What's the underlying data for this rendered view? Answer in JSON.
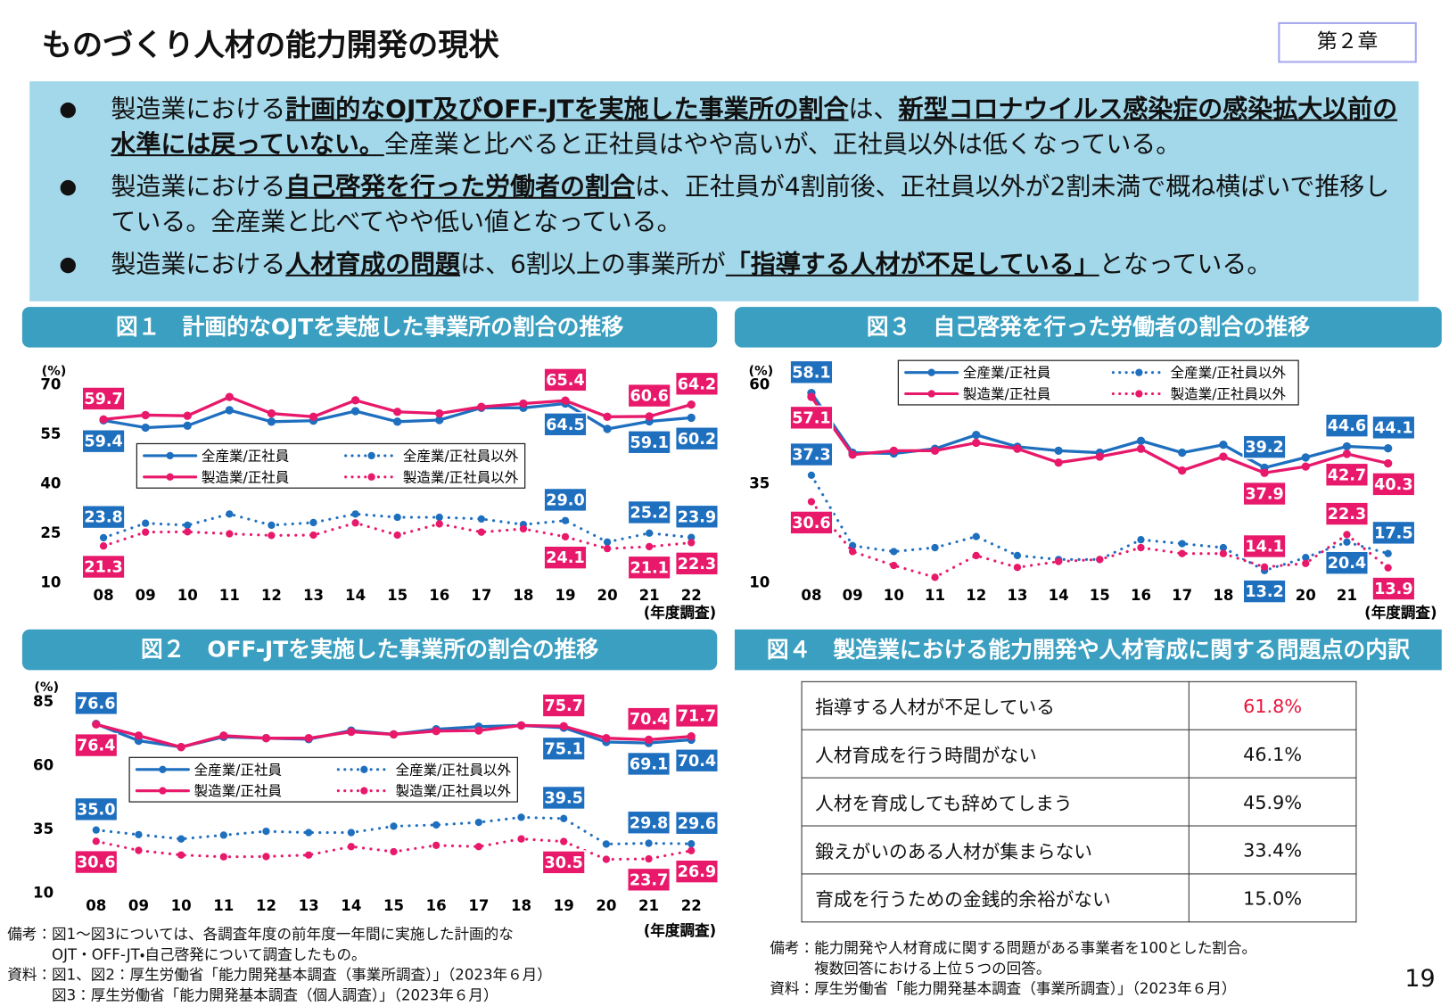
{
  "header": {
    "title": "ものづくり人材の能力開発の現状",
    "chapter": "第２章"
  },
  "bullets": [
    [
      {
        "text": "製造業における"
      },
      {
        "text": "計画的なOJT及びOFF-JTを実施した事業所の割合",
        "strong": true
      },
      {
        "text": "は、"
      },
      {
        "text": "新型コロナウイルス感染症の感染拡大以前の水準には戻っていない。",
        "strong": true
      },
      {
        "text": "全産業と比べると正社員はやや高いが、正社員以外は低くなっている。"
      }
    ],
    [
      {
        "text": "製造業における"
      },
      {
        "text": "自己啓発を行った労働者の割合",
        "strong": true
      },
      {
        "text": "は、正社員が4割前後、正社員以外が2割未満で概ね横ばいで推移している。全産業と比べてやや低い値となっている。"
      }
    ],
    [
      {
        "text": "製造業における"
      },
      {
        "text": "人材育成の問題",
        "strong": true
      },
      {
        "text": "は、6割以上の事業所が"
      },
      {
        "text": "「指導する人材が不足している」",
        "strong": true
      },
      {
        "text": "となっている。"
      }
    ]
  ],
  "chart_data": [
    {
      "type": "line",
      "title": "図１　計画的なOJTを実施した事業所の割合の推移",
      "y_label": "(%)",
      "x_label": "(年度調査)",
      "categories": [
        "08",
        "09",
        "10",
        "11",
        "12",
        "13",
        "14",
        "15",
        "16",
        "17",
        "18",
        "19",
        "20",
        "21",
        "22"
      ],
      "ylim": [
        10,
        70
      ],
      "yticks": [
        10,
        25,
        40,
        55,
        70
      ],
      "legend": "center",
      "series": [
        {
          "name": "全産業/正社員",
          "color": "#1f6fbf",
          "style": "solid",
          "values": [
            59.4,
            57.2,
            57.8,
            62.5,
            59,
            59.3,
            62.2,
            59,
            59.5,
            63.2,
            63.2,
            64.5,
            56.8,
            59.1,
            60.2
          ],
          "value_labels": [
            "59.4",
            null,
            null,
            null,
            null,
            null,
            null,
            null,
            null,
            null,
            null,
            "64.5",
            null,
            "59.1",
            "60.2"
          ]
        },
        {
          "name": "製造業/正社員",
          "color": "#e8186a",
          "style": "solid",
          "values": [
            59.7,
            61,
            60.8,
            66.5,
            61.5,
            60.5,
            65.5,
            62,
            61.5,
            63.5,
            64.5,
            65.4,
            60.5,
            60.6,
            64.2
          ],
          "value_labels": [
            "59.7",
            null,
            null,
            null,
            null,
            null,
            null,
            null,
            null,
            null,
            null,
            "65.4",
            null,
            "60.6",
            "64.2"
          ]
        },
        {
          "name": "全産業/正社員以外",
          "color": "#1f6fbf",
          "style": "dotted",
          "values": [
            23.8,
            28.2,
            27.6,
            31,
            27.6,
            28.4,
            31,
            30,
            30,
            29.5,
            27.8,
            29,
            22.5,
            25.2,
            23.9
          ],
          "value_labels": [
            "23.8",
            null,
            null,
            null,
            null,
            null,
            null,
            null,
            null,
            null,
            null,
            "29.0",
            null,
            "25.2",
            "23.9"
          ]
        },
        {
          "name": "製造業/正社員以外",
          "color": "#e8186a",
          "style": "dotted",
          "values": [
            21.3,
            25.5,
            25.6,
            25,
            24.5,
            24.6,
            28.3,
            24.6,
            28,
            25.5,
            26.5,
            24.1,
            20.5,
            21.1,
            22.3
          ],
          "value_labels": [
            "21.3",
            null,
            null,
            null,
            null,
            null,
            null,
            null,
            null,
            null,
            null,
            "24.1",
            null,
            "21.1",
            "22.3"
          ]
        }
      ]
    },
    {
      "type": "line",
      "title": "図２　OFF-JTを実施した事業所の割合の推移",
      "y_label": "(%)",
      "x_label": "(年度調査)",
      "categories": [
        "08",
        "09",
        "10",
        "11",
        "12",
        "13",
        "14",
        "15",
        "16",
        "17",
        "18",
        "19",
        "20",
        "21",
        "22"
      ],
      "ylim": [
        10,
        85
      ],
      "yticks": [
        10,
        35,
        60,
        85
      ],
      "legend": "center",
      "series": [
        {
          "name": "全産業/正社員",
          "color": "#1f6fbf",
          "style": "solid",
          "values": [
            76.6,
            70,
            67.5,
            71.5,
            71,
            70.6,
            74,
            72.5,
            74.5,
            75.5,
            76,
            75.1,
            69.5,
            69.1,
            70.4
          ],
          "value_labels": [
            "76.6",
            null,
            null,
            null,
            null,
            null,
            null,
            null,
            null,
            null,
            null,
            "75.1",
            null,
            "69.1",
            "70.4"
          ]
        },
        {
          "name": "製造業/正社員",
          "color": "#e8186a",
          "style": "solid",
          "values": [
            76.4,
            72,
            67.5,
            72,
            71,
            71,
            73.5,
            72.5,
            73.8,
            74,
            76,
            75.7,
            71,
            70.4,
            71.7
          ],
          "value_labels": [
            "76.4",
            null,
            null,
            null,
            null,
            null,
            null,
            null,
            null,
            null,
            null,
            "75.7",
            null,
            "70.4",
            "71.7"
          ]
        },
        {
          "name": "全産業/正社員以外",
          "color": "#1f6fbf",
          "style": "dotted",
          "values": [
            35,
            33.2,
            31.5,
            33,
            34.5,
            34,
            34,
            36.5,
            37,
            38,
            40,
            39.5,
            29.5,
            29.8,
            29.6
          ],
          "value_labels": [
            "35.0",
            null,
            null,
            null,
            null,
            null,
            null,
            null,
            null,
            null,
            null,
            "39.5",
            null,
            "29.8",
            "29.6"
          ]
        },
        {
          "name": "製造業/正社員以外",
          "color": "#e8186a",
          "style": "dotted",
          "values": [
            30.6,
            27,
            25.2,
            24.5,
            24.6,
            25.2,
            28.5,
            26.5,
            29,
            28.5,
            31.5,
            30.5,
            23.5,
            23.7,
            26.9
          ],
          "value_labels": [
            "30.6",
            null,
            null,
            null,
            null,
            null,
            null,
            null,
            null,
            null,
            null,
            "30.5",
            null,
            "23.7",
            "26.9"
          ]
        }
      ]
    },
    {
      "type": "line",
      "title": "図３　自己啓発を行った労働者の割合の推移",
      "y_label": "(%)",
      "x_label": "(年度調査)",
      "categories": [
        "08",
        "09",
        "10",
        "11",
        "12",
        "13",
        "14",
        "15",
        "16",
        "17",
        "18",
        "19",
        "20",
        "21",
        "22"
      ],
      "ylim": [
        10,
        60
      ],
      "yticks": [
        10,
        35,
        60
      ],
      "legend": "top",
      "series": [
        {
          "name": "全産業/正社員",
          "color": "#1f6fbf",
          "style": "solid",
          "values": [
            58.1,
            43,
            42.8,
            44,
            47.5,
            44.5,
            43.5,
            43,
            46,
            43,
            45,
            39.2,
            41.8,
            44.6,
            44.1
          ],
          "value_labels": [
            "58.1",
            null,
            null,
            null,
            null,
            null,
            null,
            null,
            null,
            null,
            null,
            "39.2",
            null,
            "44.6",
            "44.1"
          ]
        },
        {
          "name": "製造業/正社員",
          "color": "#e8186a",
          "style": "solid",
          "values": [
            57.1,
            42.5,
            43.5,
            43.5,
            45.5,
            44,
            40.5,
            42,
            44,
            38.5,
            42,
            37.9,
            39.5,
            42.7,
            40.3
          ],
          "value_labels": [
            "57.1",
            null,
            null,
            null,
            null,
            null,
            null,
            null,
            null,
            null,
            null,
            "37.9",
            null,
            "42.7",
            "40.3"
          ]
        },
        {
          "name": "全産業/正社員以外",
          "color": "#1f6fbf",
          "style": "dotted",
          "values": [
            37.3,
            19.5,
            18,
            19,
            21.8,
            17,
            16,
            16,
            21,
            20,
            19,
            13.2,
            16.5,
            20.4,
            17.5
          ],
          "value_labels": [
            "37.3",
            null,
            null,
            null,
            null,
            null,
            null,
            null,
            null,
            null,
            null,
            "13.2",
            null,
            "20.4",
            "17.5"
          ]
        },
        {
          "name": "製造業/正社員以外",
          "color": "#e8186a",
          "style": "dotted",
          "values": [
            30.6,
            18,
            14.5,
            11.5,
            17,
            14,
            15.5,
            16,
            19,
            17.5,
            17.5,
            14.1,
            15,
            22.3,
            13.9
          ],
          "value_labels": [
            "30.6",
            null,
            null,
            null,
            null,
            null,
            null,
            null,
            null,
            null,
            null,
            "14.1",
            null,
            "22.3",
            "13.9"
          ]
        }
      ]
    }
  ],
  "table": {
    "title": "図４　製造業における能力開発や人材育成に関する問題点の内訳",
    "rows": [
      [
        "指導する人材が不足している",
        "61.8%"
      ],
      [
        "人材育成を行う時間がない",
        "46.1%"
      ],
      [
        "人材を育成しても辞めてしまう",
        "45.9%"
      ],
      [
        "鍛えがいのある人材が集まらない",
        "33.4%"
      ],
      [
        "育成を行うための金銭的余裕がない",
        "15.0%"
      ]
    ]
  },
  "notes_left": [
    {
      "label": "備考：",
      "lines": [
        "図1～図3については、各調査年度の前年度一年間に実施した計画的な",
        "OJT・OFF-JT・自己啓発について調査したもの。"
      ]
    },
    {
      "label": "資料：",
      "lines": [
        "図1、図2：厚生労働省「能力開発基本調査（事業所調査）」（2023年６月）",
        "図3：厚生労働省「能力開発基本調査（個人調査）」（2023年６月）"
      ]
    }
  ],
  "notes_right": [
    {
      "label": "備考：",
      "lines": [
        "能力開発や人材育成に関する問題がある事業者を100とした割合。",
        "複数回答における上位５つの回答。"
      ]
    },
    {
      "label": "資料：",
      "lines": [
        "厚生労働省「能力開発基本調査（事業所調査）」（2023年６月）"
      ]
    }
  ],
  "page_number": "19"
}
